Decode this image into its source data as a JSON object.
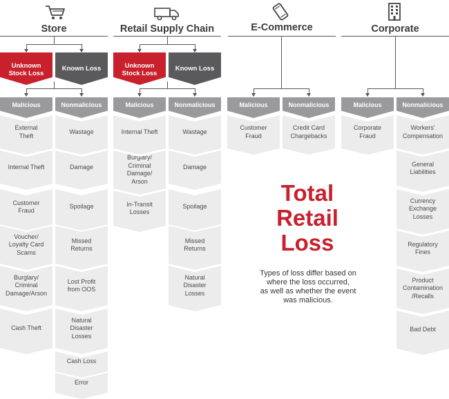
{
  "categories": {
    "store": {
      "title": "Store",
      "icon": "shopping-cart-icon"
    },
    "supply_chain": {
      "title": "Retail Supply Chain",
      "icon": "delivery-truck-icon"
    },
    "ecommerce": {
      "title": "E-Commerce",
      "icon": "mobile-phone-icon"
    },
    "corporate": {
      "title": "Corporate",
      "icon": "office-building-icon"
    }
  },
  "store": {
    "unknown": "Unknown\nStock Loss",
    "known": "Known Loss",
    "unknown_malicious": "Malicious",
    "known_nonmalicious": "Nonmalicious",
    "malicious_items": [
      "External\nTheft",
      "Internal Theft",
      "Customer\nFraud",
      "Voucher/\nLoyalty Card\nScams",
      "Burglary/\nCriminal\nDamage/Arson",
      "Cash Theft"
    ],
    "nonmalicious_items": [
      "Wastage",
      "Damage",
      "Spoilage",
      "Missed\nReturns",
      "Lost Profit\nfrom OOS",
      "Natural\nDisaster\nLosses",
      "Cash Loss",
      "Error"
    ]
  },
  "supply_chain": {
    "unknown": "Unknown\nStock Loss",
    "known": "Known Loss",
    "unknown_malicious": "Malicious",
    "known_nonmalicious": "Nonmalicious",
    "malicious_items": [
      "Internal Theft",
      "Burglary/\nCriminal\nDamage/\nArson",
      "In-Transit\nLosses"
    ],
    "nonmalicious_items": [
      "Wastage",
      "Damage",
      "Spoilage",
      "Missed\nReturns",
      "Natural\nDisaster\nLosses"
    ]
  },
  "ecommerce": {
    "malicious": "Malicious",
    "nonmalicious": "Nonmalicious",
    "malicious_items": [
      "Customer\nFraud"
    ],
    "nonmalicious_items": [
      "Credit Card\nChargebacks"
    ]
  },
  "corporate": {
    "malicious": "Malicious",
    "nonmalicious": "Nonmalicious",
    "malicious_items": [
      "Corporate\nFraud"
    ],
    "nonmalicious_items": [
      "Workers'\nCompensation",
      "General\nLiabilities",
      "Currency\nExchange\nLosses",
      "Regulatory\nFines",
      "Product\nContamination\n/Recalls",
      "Bad Debt"
    ]
  },
  "center": {
    "title": "Total\nRetail\nLoss",
    "description": "Types of loss differ based on\nwhere the loss occurred,\nas well as whether the event\nwas malicious."
  },
  "colors": {
    "red": "#c8202d",
    "dark_gray": "#5a5a5c",
    "mid_gray": "#9a9a9c",
    "leaf_gray": "#ececec"
  }
}
